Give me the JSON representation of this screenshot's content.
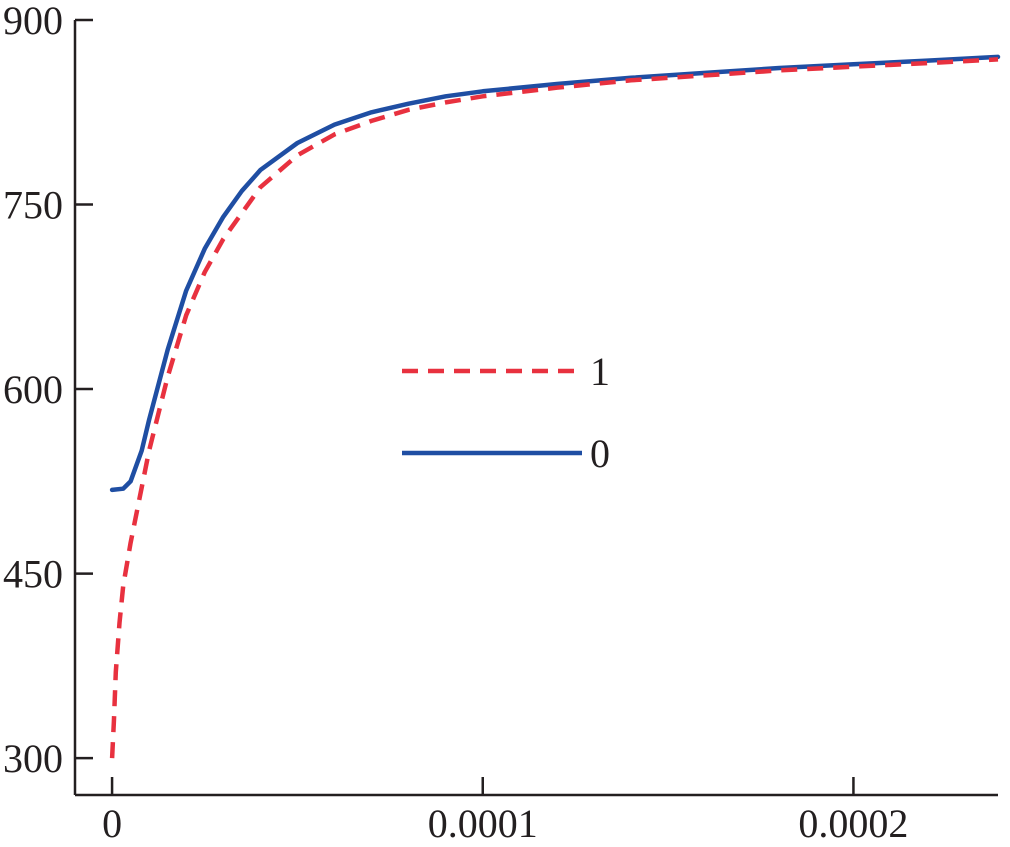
{
  "chart_data": {
    "type": "line",
    "title": "",
    "xlabel": "",
    "ylabel": "",
    "xlim": [
      -1e-05,
      0.000239
    ],
    "ylim": [
      270,
      900
    ],
    "x_ticks": [
      0,
      0.0001,
      0.0002
    ],
    "x_tick_labels": [
      "0",
      "0.0001",
      "0.0002"
    ],
    "y_ticks": [
      300,
      450,
      600,
      750,
      900
    ],
    "y_tick_labels": [
      "300",
      "450",
      "600",
      "750",
      "900"
    ],
    "grid": false,
    "legend_position": "center",
    "series": [
      {
        "name": "1",
        "color": "#e8313f",
        "style": "dashed",
        "points": [
          [
            0,
            300
          ],
          [
            5e-07,
            330
          ],
          [
            1e-06,
            370
          ],
          [
            2e-06,
            410
          ],
          [
            3e-06,
            440
          ],
          [
            5e-06,
            475
          ],
          [
            8e-06,
            520
          ],
          [
            1e-05,
            550
          ],
          [
            1.5e-05,
            610
          ],
          [
            2e-05,
            660
          ],
          [
            2.5e-05,
            695
          ],
          [
            3e-05,
            722
          ],
          [
            4e-05,
            764
          ],
          [
            5e-05,
            790
          ],
          [
            6e-05,
            807
          ],
          [
            7e-05,
            818
          ],
          [
            8e-05,
            827
          ],
          [
            9e-05,
            833
          ],
          [
            0.0001,
            838
          ],
          [
            0.00012,
            845
          ],
          [
            0.00014,
            851
          ],
          [
            0.00016,
            855
          ],
          [
            0.00018,
            859
          ],
          [
            0.0002,
            862
          ],
          [
            0.00022,
            865
          ],
          [
            0.000239,
            868
          ]
        ]
      },
      {
        "name": "0",
        "color": "#1f4ea3",
        "style": "solid",
        "points": [
          [
            0,
            518
          ],
          [
            3e-06,
            519
          ],
          [
            5e-06,
            525
          ],
          [
            8e-06,
            550
          ],
          [
            1e-05,
            575
          ],
          [
            1.5e-05,
            632
          ],
          [
            2e-05,
            680
          ],
          [
            2.5e-05,
            714
          ],
          [
            3e-05,
            740
          ],
          [
            3.5e-05,
            761
          ],
          [
            4e-05,
            778
          ],
          [
            5e-05,
            800
          ],
          [
            6e-05,
            815
          ],
          [
            7e-05,
            825
          ],
          [
            8e-05,
            832
          ],
          [
            9e-05,
            838
          ],
          [
            0.0001,
            842
          ],
          [
            0.00012,
            848
          ],
          [
            0.00014,
            853
          ],
          [
            0.00016,
            857
          ],
          [
            0.00018,
            861
          ],
          [
            0.0002,
            864
          ],
          [
            0.00022,
            867
          ],
          [
            0.000239,
            870
          ]
        ]
      }
    ]
  }
}
